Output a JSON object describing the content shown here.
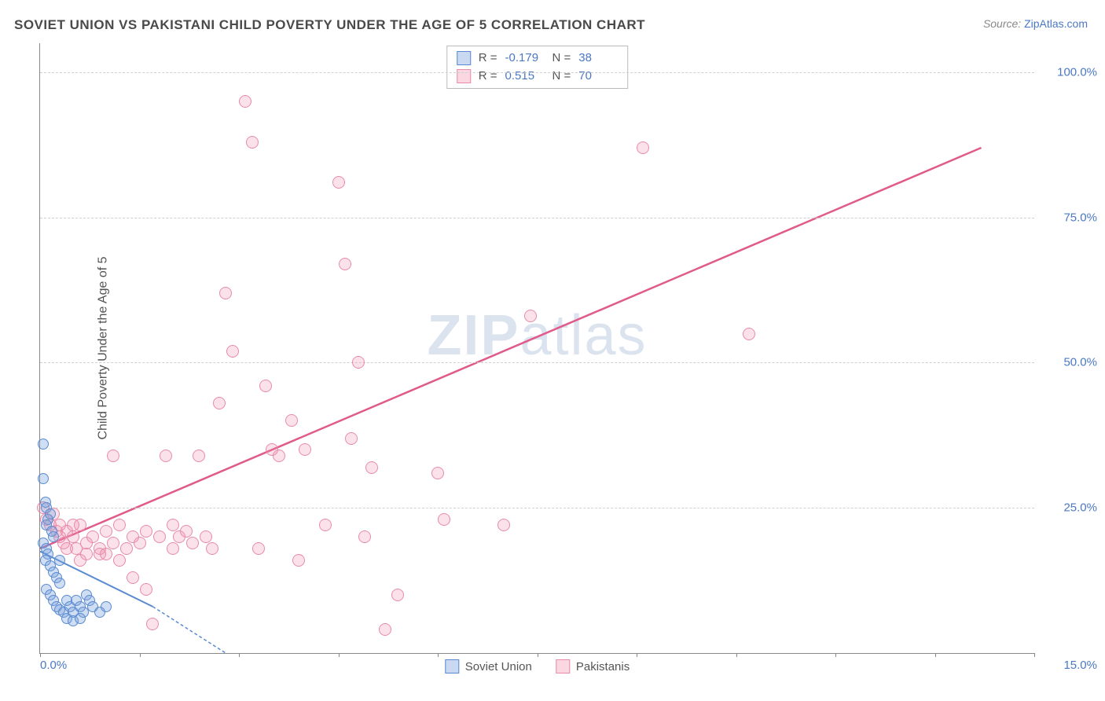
{
  "title": "SOVIET UNION VS PAKISTANI CHILD POVERTY UNDER THE AGE OF 5 CORRELATION CHART",
  "source": {
    "label": "Source:",
    "value": "ZipAtlas.com"
  },
  "watermark": {
    "bold": "ZIP",
    "light": "atlas"
  },
  "y_axis_label": "Child Poverty Under the Age of 5",
  "chart": {
    "type": "scatter",
    "xlim": [
      0,
      15
    ],
    "ylim": [
      0,
      105
    ],
    "background_color": "#ffffff",
    "grid_color": "#d0d0d0",
    "axis_color": "#888888",
    "yticks": [
      25,
      50,
      75,
      100
    ],
    "ytick_labels": [
      "25.0%",
      "50.0%",
      "75.0%",
      "100.0%"
    ],
    "xtick_positions": [
      0,
      1.5,
      3.0,
      4.5,
      6.0,
      7.5,
      9.0,
      10.5,
      12.0,
      13.5,
      15.0
    ],
    "x_first_label": "0.0%",
    "x_last_label": "15.0%",
    "label_color": "#4a78c4",
    "label_fontsize": 15,
    "title_color": "#4a4a4a",
    "title_fontsize": 17,
    "marker_size_blue": 14,
    "marker_size_pink": 16,
    "series": {
      "blue": {
        "name": "Soviet Union",
        "fill": "rgba(120,160,220,0.35)",
        "stroke": "#5a8bd0",
        "R": "-0.179",
        "N": "38",
        "trend": {
          "x1": 0.0,
          "y1": 17.5,
          "x2": 1.7,
          "y2": 8.0,
          "dash_to_x": 2.8,
          "dash_to_y": 0.0,
          "width": 2
        },
        "points": [
          [
            0.05,
            36
          ],
          [
            0.05,
            30
          ],
          [
            0.08,
            26
          ],
          [
            0.1,
            25
          ],
          [
            0.12,
            23
          ],
          [
            0.1,
            22
          ],
          [
            0.15,
            24
          ],
          [
            0.18,
            21
          ],
          [
            0.2,
            20
          ],
          [
            0.05,
            19
          ],
          [
            0.1,
            18
          ],
          [
            0.12,
            17
          ],
          [
            0.08,
            16
          ],
          [
            0.15,
            15
          ],
          [
            0.2,
            14
          ],
          [
            0.25,
            13
          ],
          [
            0.3,
            12
          ],
          [
            0.1,
            11
          ],
          [
            0.15,
            10
          ],
          [
            0.2,
            9
          ],
          [
            0.25,
            8
          ],
          [
            0.3,
            7.5
          ],
          [
            0.35,
            7
          ],
          [
            0.4,
            9
          ],
          [
            0.45,
            8
          ],
          [
            0.5,
            7
          ],
          [
            0.55,
            9
          ],
          [
            0.6,
            8
          ],
          [
            0.65,
            7
          ],
          [
            0.7,
            10
          ],
          [
            0.75,
            9
          ],
          [
            0.8,
            8
          ],
          [
            0.4,
            6
          ],
          [
            0.5,
            5.5
          ],
          [
            0.6,
            6
          ],
          [
            0.9,
            7
          ],
          [
            1.0,
            8
          ],
          [
            0.3,
            16
          ]
        ]
      },
      "pink": {
        "name": "Pakistanis",
        "fill": "rgba(240,140,170,0.25)",
        "stroke": "#e88aa8",
        "R": "0.515",
        "N": "70",
        "trend": {
          "x1": 0.0,
          "y1": 18.0,
          "x2": 14.2,
          "y2": 87.0,
          "width": 2.5
        },
        "points": [
          [
            0.05,
            25
          ],
          [
            0.1,
            23
          ],
          [
            0.15,
            22
          ],
          [
            0.2,
            24
          ],
          [
            0.25,
            21
          ],
          [
            0.3,
            20
          ],
          [
            0.35,
            19
          ],
          [
            0.4,
            21
          ],
          [
            0.5,
            20
          ],
          [
            0.55,
            18
          ],
          [
            0.6,
            22
          ],
          [
            0.7,
            19
          ],
          [
            0.8,
            20
          ],
          [
            0.9,
            18
          ],
          [
            1.0,
            21
          ],
          [
            1.1,
            19
          ],
          [
            1.2,
            22
          ],
          [
            1.3,
            18
          ],
          [
            1.4,
            20
          ],
          [
            1.5,
            19
          ],
          [
            1.6,
            21
          ],
          [
            1.8,
            20
          ],
          [
            1.4,
            13
          ],
          [
            1.6,
            11
          ],
          [
            2.0,
            22
          ],
          [
            2.1,
            20
          ],
          [
            2.2,
            21
          ],
          [
            2.3,
            19
          ],
          [
            2.5,
            20
          ],
          [
            1.9,
            34
          ],
          [
            2.4,
            34
          ],
          [
            1.1,
            34
          ],
          [
            2.8,
            62
          ],
          [
            2.9,
            52
          ],
          [
            2.7,
            43
          ],
          [
            3.1,
            95
          ],
          [
            3.2,
            88
          ],
          [
            3.5,
            35
          ],
          [
            3.6,
            34
          ],
          [
            3.4,
            46
          ],
          [
            3.8,
            40
          ],
          [
            3.9,
            16
          ],
          [
            4.0,
            35
          ],
          [
            4.5,
            81
          ],
          [
            4.3,
            22
          ],
          [
            4.6,
            67
          ],
          [
            4.8,
            50
          ],
          [
            4.7,
            37
          ],
          [
            5.0,
            32
          ],
          [
            4.9,
            20
          ],
          [
            5.2,
            4
          ],
          [
            5.4,
            10
          ],
          [
            6.0,
            31
          ],
          [
            6.1,
            23
          ],
          [
            7.4,
            58
          ],
          [
            7.0,
            22
          ],
          [
            9.1,
            87
          ],
          [
            10.7,
            55
          ],
          [
            1.7,
            5
          ],
          [
            0.9,
            17
          ],
          [
            0.7,
            17
          ],
          [
            0.6,
            16
          ],
          [
            0.4,
            18
          ],
          [
            1.0,
            17
          ],
          [
            1.2,
            16
          ],
          [
            2.6,
            18
          ],
          [
            2.0,
            18
          ],
          [
            0.5,
            22
          ],
          [
            0.3,
            22
          ],
          [
            3.3,
            18
          ]
        ]
      }
    }
  },
  "stats_box": {
    "rows": [
      {
        "swatch": "blue",
        "R_label": "R =",
        "R_val": "-0.179",
        "N_label": "N =",
        "N_val": "38"
      },
      {
        "swatch": "pink",
        "R_label": "R =",
        "R_val": "0.515",
        "N_label": "N =",
        "N_val": "70"
      }
    ]
  },
  "legend": [
    {
      "swatch": "blue",
      "label": "Soviet Union"
    },
    {
      "swatch": "pink",
      "label": "Pakistanis"
    }
  ]
}
